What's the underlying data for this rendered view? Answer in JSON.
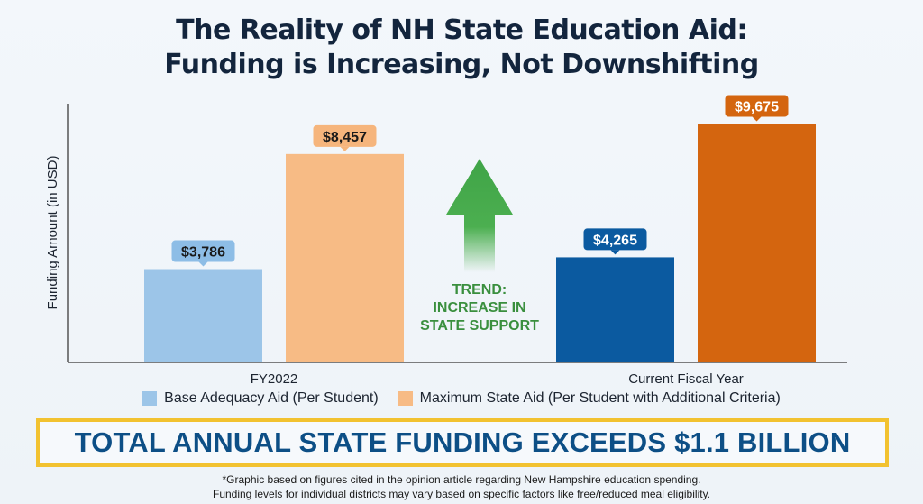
{
  "title_line1": "The Reality of NH State Education Aid:",
  "title_line2": "Funding is Increasing, Not Downshifting",
  "chart_data": {
    "type": "bar",
    "categories": [
      "FY2022",
      "Current Fiscal Year"
    ],
    "series": [
      {
        "name": "Base Adequacy Aid (Per Student)",
        "values": [
          3786,
          4265
        ],
        "labels": [
          "$3,786",
          "$4,265"
        ],
        "colors": [
          "#9cc5e8",
          "#0b5aa0"
        ]
      },
      {
        "name": "Maximum State Aid (Per Student with Additional Criteria)",
        "values": [
          8457,
          9675
        ],
        "labels": [
          "$8,457",
          "$9,675"
        ],
        "colors": [
          "#f7bb85",
          "#d4650f"
        ]
      }
    ],
    "ylabel": "Funding Amount (in USD)",
    "xlabel": "",
    "ylim": [
      0,
      10500
    ],
    "grid": false,
    "legend_position": "bottom",
    "annotation": {
      "lines": [
        "TREND:",
        "INCREASE IN",
        "STATE SUPPORT"
      ],
      "color": "#3a8f3e"
    }
  },
  "banner": "TOTAL ANNUAL STATE FUNDING EXCEEDS $1.1 BILLION",
  "footnote_line1": "*Graphic based on figures cited in the opinion article regarding New Hampshire education spending.",
  "footnote_line2": "Funding levels for individual districts may vary based on specific factors like free/reduced meal eligibility."
}
